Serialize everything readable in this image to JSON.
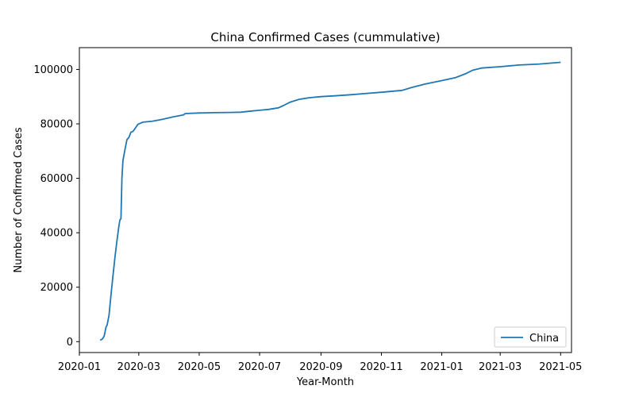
{
  "chart_data": {
    "type": "line",
    "title": "China Confirmed Cases (cummulative)",
    "xlabel": "Year-Month",
    "ylabel": "Number of Confirmed Cases",
    "xlim": [
      "2020-01-01",
      "2021-05-12"
    ],
    "ylim": [
      -4000,
      108000
    ],
    "x_ticks": [
      "2020-01",
      "2020-03",
      "2020-05",
      "2020-07",
      "2020-09",
      "2020-11",
      "2021-01",
      "2021-03",
      "2021-05"
    ],
    "y_ticks": [
      0,
      20000,
      40000,
      60000,
      80000,
      100000
    ],
    "grid": false,
    "legend_position": "lower-right",
    "series": [
      {
        "name": "China",
        "color": "#1f77b4",
        "x": [
          "2020-01-22",
          "2020-01-24",
          "2020-01-26",
          "2020-01-28",
          "2020-01-29",
          "2020-01-31",
          "2020-02-02",
          "2020-02-04",
          "2020-02-06",
          "2020-02-08",
          "2020-02-10",
          "2020-02-11",
          "2020-02-12",
          "2020-02-13",
          "2020-02-14",
          "2020-02-16",
          "2020-02-18",
          "2020-02-20",
          "2020-02-22",
          "2020-02-24",
          "2020-02-26",
          "2020-02-29",
          "2020-03-05",
          "2020-03-15",
          "2020-03-25",
          "2020-04-05",
          "2020-04-15",
          "2020-04-17",
          "2020-05-01",
          "2020-05-15",
          "2020-06-01",
          "2020-06-12",
          "2020-06-20",
          "2020-07-01",
          "2020-07-10",
          "2020-07-20",
          "2020-07-25",
          "2020-08-01",
          "2020-08-10",
          "2020-08-20",
          "2020-09-01",
          "2020-09-15",
          "2020-10-01",
          "2020-10-15",
          "2020-11-01",
          "2020-11-22",
          "2020-12-01",
          "2020-12-15",
          "2021-01-01",
          "2021-01-15",
          "2021-01-25",
          "2021-02-01",
          "2021-02-10",
          "2021-03-01",
          "2021-03-20",
          "2021-04-10",
          "2021-05-01"
        ],
        "y": [
          550,
          900,
          2000,
          5500,
          6000,
          9800,
          17400,
          24400,
          31200,
          37200,
          42700,
          44700,
          45200,
          60000,
          66500,
          70500,
          74200,
          75000,
          76900,
          77200,
          78200,
          79800,
          80600,
          81000,
          81700,
          82600,
          83300,
          83800,
          84000,
          84100,
          84200,
          84300,
          84600,
          85000,
          85300,
          85900,
          86700,
          88000,
          89000,
          89600,
          90000,
          90300,
          90700,
          91100,
          91600,
          92300,
          93300,
          94600,
          95900,
          97000,
          98400,
          99700,
          100500,
          101000,
          101600,
          102000,
          102600
        ]
      }
    ]
  }
}
